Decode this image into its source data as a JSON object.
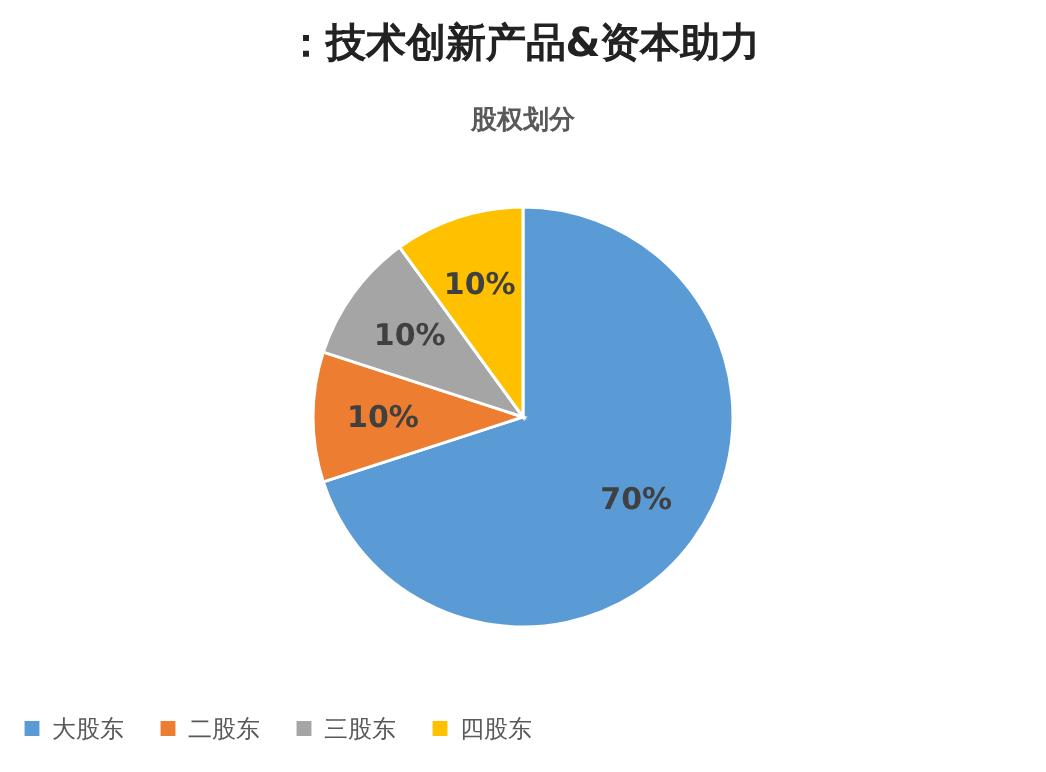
{
  "chart_data": {
    "type": "pie",
    "title": "：技术创新产品&资本助力",
    "subtitle": "股权划分",
    "categories": [
      "大股东",
      "二股东",
      "三股东",
      "四股东"
    ],
    "values": [
      70,
      10,
      10,
      10
    ],
    "colors": [
      "#5b9bd5",
      "#ed7d31",
      "#a5a5a5",
      "#ffc000"
    ],
    "value_labels": [
      "70%",
      "10%",
      "10%",
      "10%"
    ],
    "legend": "bottom"
  }
}
